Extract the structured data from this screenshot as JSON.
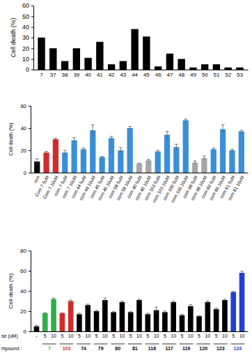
{
  "chart_data": [
    {
      "type": "bar",
      "y_label": "Cell death (%)",
      "categories": [
        "7",
        "37",
        "38",
        "39",
        "40",
        "41",
        "42",
        "43",
        "44",
        "45",
        "46",
        "47",
        "48",
        "49",
        "50",
        "51",
        "52",
        "53"
      ],
      "values": [
        30,
        20,
        8,
        20,
        11,
        26,
        5,
        8,
        38,
        31,
        3,
        15,
        10,
        2,
        5,
        5,
        2,
        2
      ],
      "color": "#000000",
      "ylim": [
        0,
        60
      ],
      "yticks": [
        0,
        10,
        20,
        30,
        40,
        50,
        60
      ]
    },
    {
      "type": "bar",
      "y_label": "Cell death (%)",
      "categories": [
        "con",
        "Com 7 5uM",
        "Com 7 10uM",
        "com 7 5uM",
        "com 7 10uM",
        "com 44 5uM",
        "com 44 10uM",
        "com 45 5uM",
        "com 45 10uM",
        "com 58 5uM",
        "com 58 10uM",
        "com 40 5uM",
        "com 40 10uM",
        "com 103 5uM",
        "com 103 10uM",
        "com 100 5uM",
        "com 100 10uM",
        "com 98 5uM",
        "com 98 10uM",
        "com 60 5uM",
        "com 60 10uM",
        "com 61 5uM",
        "com 61 10uM"
      ],
      "values": [
        10,
        18,
        30,
        18,
        29,
        21,
        38,
        14,
        31,
        20,
        40,
        8,
        11,
        19,
        34,
        23,
        47,
        9,
        13,
        21,
        39,
        20,
        37
      ],
      "errors": [
        2.5,
        1,
        1,
        2,
        2.5,
        1,
        5,
        0.5,
        1.5,
        2.5,
        1.5,
        0.5,
        1,
        1,
        3,
        2.5,
        1,
        1.5,
        2,
        1,
        4,
        1,
        1
      ],
      "colors": [
        "#000000",
        "#d12c2c",
        "#d12c2c",
        "#3b8fd9",
        "#3b8fd9",
        "#3b8fd9",
        "#3b8fd9",
        "#3b8fd9",
        "#3b8fd9",
        "#3b8fd9",
        "#3b8fd9",
        "#a6a6a6",
        "#a6a6a6",
        "#3b8fd9",
        "#3b8fd9",
        "#3b8fd9",
        "#3b8fd9",
        "#a6a6a6",
        "#a6a6a6",
        "#3b8fd9",
        "#3b8fd9",
        "#3b8fd9",
        "#3b8fd9"
      ],
      "ylim": [
        0,
        60
      ],
      "yticks": [
        0,
        20,
        40,
        60
      ]
    },
    {
      "type": "bar",
      "y_label": "Cell death (%)",
      "x_label": "se (uM)",
      "group_label": "mpound :",
      "categories": [
        "-",
        "5",
        "10",
        "5",
        "10",
        "5",
        "10",
        "5",
        "10",
        "5",
        "10",
        "5",
        "10",
        "5",
        "10",
        "5",
        "10",
        "5",
        "10",
        "5",
        "10",
        "5",
        "10",
        "5",
        "10"
      ],
      "values": [
        5,
        18,
        32,
        18,
        30,
        17,
        26,
        20,
        31,
        19,
        29,
        19,
        31,
        17,
        21,
        19,
        29,
        16,
        25,
        15,
        29,
        22,
        31,
        39,
        58
      ],
      "errors": [
        1,
        0.5,
        1,
        0.5,
        1,
        1,
        1,
        1,
        2,
        0.5,
        1,
        0.5,
        1,
        1,
        3,
        1,
        1,
        1,
        1.5,
        0.5,
        1,
        1,
        1,
        0.5,
        1.5
      ],
      "colors": [
        "#000000",
        "#2fb04a",
        "#2fb04a",
        "#d12c2c",
        "#d12c2c",
        "#000000",
        "#000000",
        "#000000",
        "#000000",
        "#000000",
        "#000000",
        "#000000",
        "#000000",
        "#000000",
        "#000000",
        "#000000",
        "#000000",
        "#000000",
        "#000000",
        "#000000",
        "#000000",
        "#000000",
        "#000000",
        "#1f3fd9",
        "#1f3fd9"
      ],
      "groups": [
        {
          "name": "7",
          "color": "#2fb04a"
        },
        {
          "name": "103",
          "color": "#d12c2c"
        },
        {
          "name": "74",
          "color": "#000000"
        },
        {
          "name": "79",
          "color": "#000000"
        },
        {
          "name": "80",
          "color": "#000000"
        },
        {
          "name": "81",
          "color": "#000000"
        },
        {
          "name": "116",
          "color": "#000000"
        },
        {
          "name": "117",
          "color": "#000000"
        },
        {
          "name": "119",
          "color": "#000000"
        },
        {
          "name": "120",
          "color": "#000000"
        },
        {
          "name": "123",
          "color": "#000000"
        },
        {
          "name": "124",
          "color": "#1f3fd9"
        }
      ],
      "ylim": [
        0,
        80
      ],
      "yticks": [
        0,
        20,
        40,
        60,
        80
      ]
    }
  ]
}
